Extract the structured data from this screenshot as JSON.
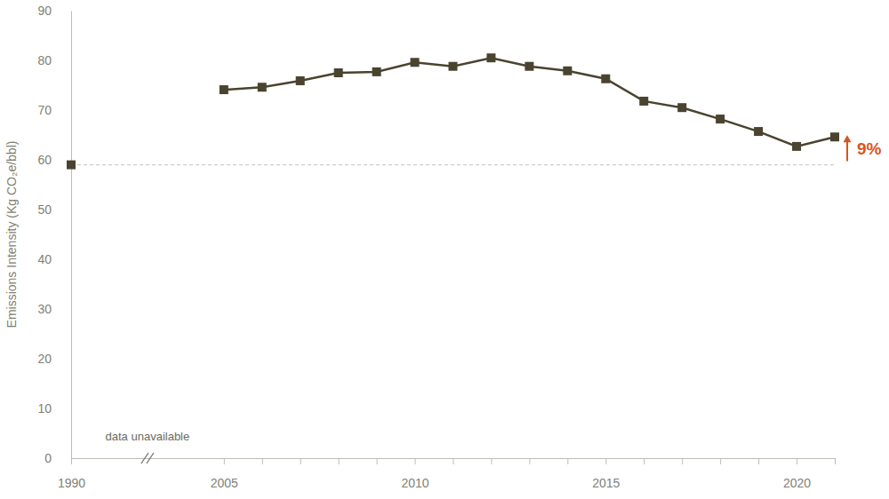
{
  "chart_data": {
    "type": "line",
    "y_label": "Emissions Intensity (Kg CO₂e/bbl)",
    "categories": [
      "1990",
      null,
      null,
      null,
      "2005",
      null,
      null,
      null,
      null,
      "2010",
      null,
      null,
      null,
      null,
      "2015",
      null,
      null,
      null,
      null,
      "2020",
      null
    ],
    "values": [
      59,
      null,
      null,
      null,
      74.1,
      74.6,
      75.9,
      77.5,
      77.7,
      79.6,
      78.8,
      80.5,
      78.8,
      77.9,
      76.3,
      71.8,
      70.5,
      68.2,
      65.7,
      62.7,
      64.6
    ],
    "color": "#49432f",
    "marker": "square",
    "line_style": "solid",
    "ylim": [
      0,
      90
    ],
    "yticks": [
      0,
      10,
      20,
      30,
      40,
      50,
      60,
      70,
      80,
      90
    ],
    "grid": false,
    "annotations": [
      "data unavailable",
      "9%"
    ]
  }
}
